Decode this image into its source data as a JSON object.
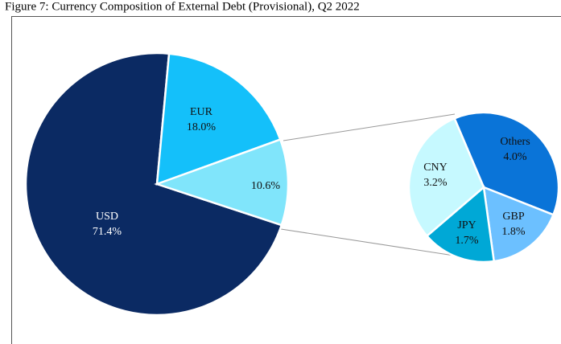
{
  "chart_data": [
    {
      "type": "pie",
      "title": "Figure 7: Currency Composition of External Debt (Provisional), Q2 2022",
      "categories": [
        "USD",
        "EUR",
        null
      ],
      "values": [
        71.4,
        18.0,
        10.6
      ],
      "value_labels": [
        "71.4%",
        "18.0%",
        "10.6%"
      ],
      "colors": [
        "#0b2a63",
        "#14c0fa",
        "#80e5fb"
      ]
    },
    {
      "type": "pie",
      "categories": [
        "Others",
        "GBP",
        "JPY",
        "CNY"
      ],
      "values": [
        4.0,
        1.8,
        1.7,
        3.2
      ],
      "value_labels": [
        "4.0%",
        "1.8%",
        "1.7%",
        "3.2%"
      ],
      "colors": [
        "#0a74d8",
        "#6cc0ff",
        "#00a8d6",
        "#c6f9ff"
      ]
    }
  ]
}
